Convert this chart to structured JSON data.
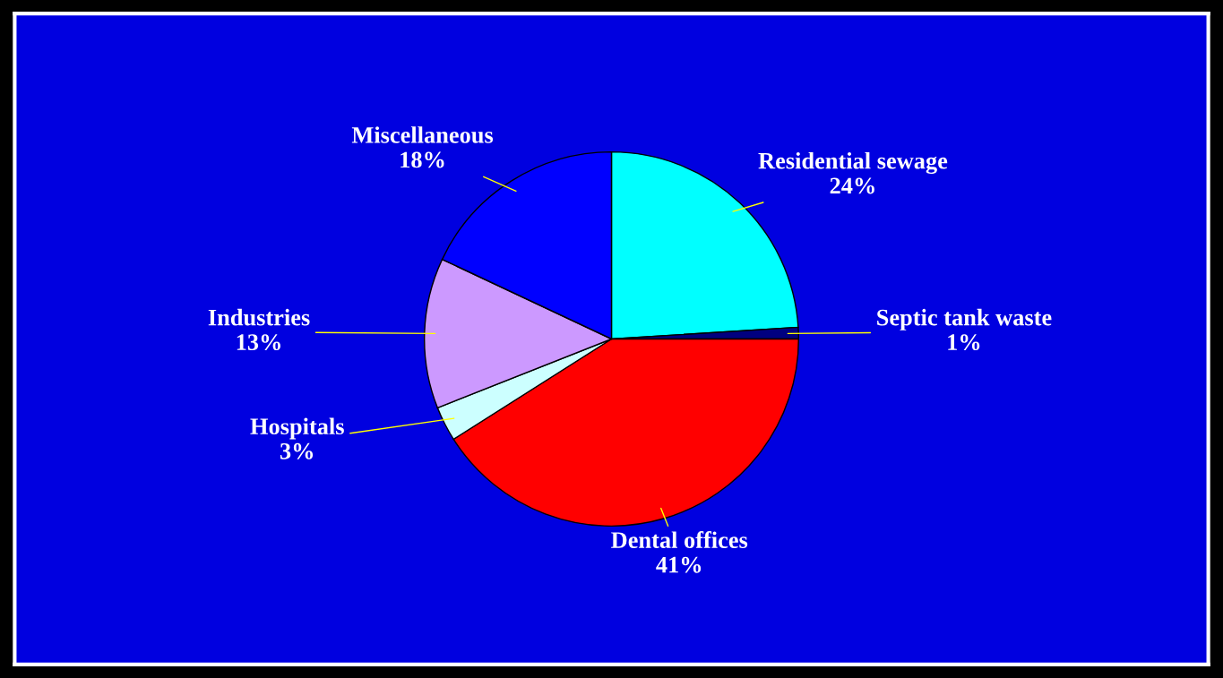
{
  "chart_data": {
    "type": "pie",
    "categories": [
      "Residential sewage",
      "Septic tank waste",
      "Dental offices",
      "Hospitals",
      "Industries",
      "Miscellaneous"
    ],
    "values": [
      24,
      1,
      41,
      3,
      13,
      18
    ],
    "value_labels": [
      "24%",
      "1%",
      "41%",
      "3%",
      "13%",
      "18%"
    ],
    "colors": [
      "#00ffff",
      "#000080",
      "#ff0000",
      "#ccffff",
      "#cc99ff",
      "#0000ff"
    ]
  }
}
